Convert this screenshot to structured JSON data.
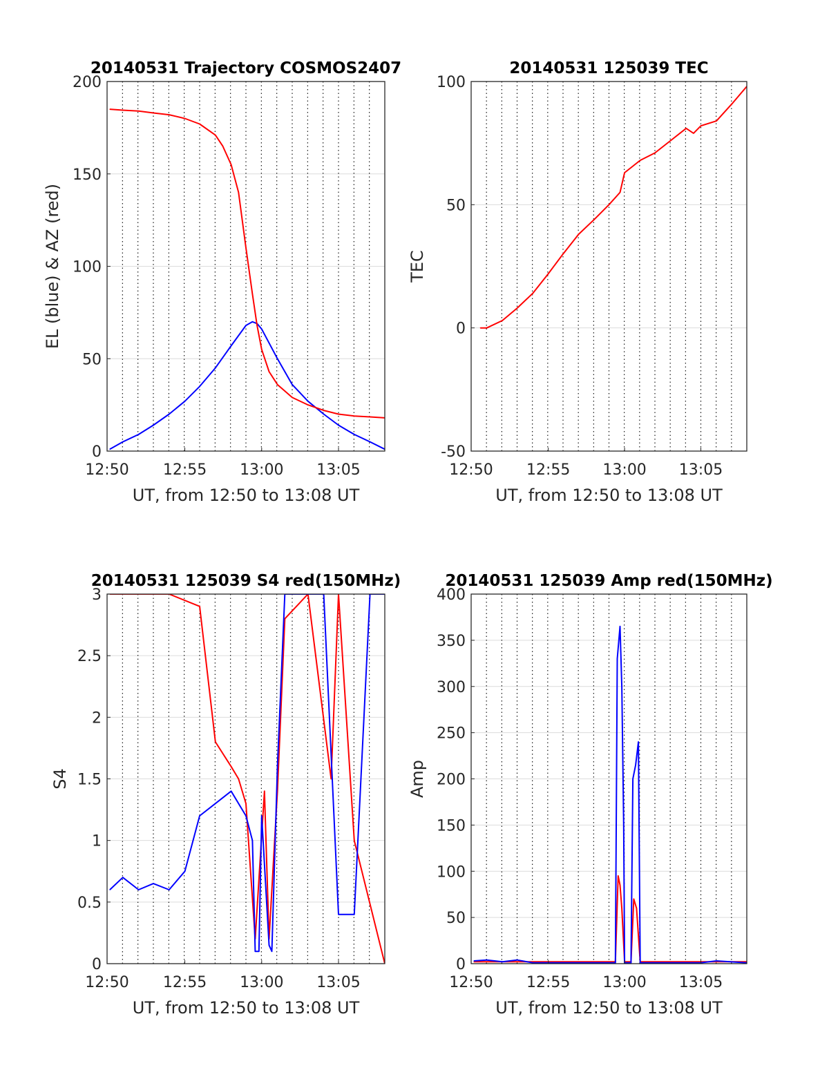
{
  "chart_data": [
    {
      "type": "line",
      "title": "20140531 Trajectory COSMOS2407",
      "xlabel": "UT, from 12:50 to 13:08 UT",
      "ylabel": "EL (blue) & AZ (red)",
      "xlim": [
        12.833,
        13.133
      ],
      "ylim": [
        0,
        200
      ],
      "xticks": [
        12.833,
        12.917,
        13.0,
        13.083
      ],
      "xticklabels": [
        "12:50",
        "12:55",
        "13:00",
        "13:05"
      ],
      "yticks": [
        0,
        50,
        100,
        150,
        200
      ],
      "yticklabels": [
        "0",
        "50",
        "100",
        "150",
        "200"
      ],
      "grid": "horizontal solid, vertical dotted every 1 min",
      "series": [
        {
          "name": "EL (blue)",
          "color": "#0000ff",
          "x": [
            12.836,
            12.85,
            12.867,
            12.883,
            12.9,
            12.917,
            12.933,
            12.95,
            12.967,
            12.983,
            12.99,
            12.995,
            13.0,
            13.017,
            13.033,
            13.05,
            13.067,
            13.083,
            13.1,
            13.117,
            13.133
          ],
          "values": [
            1,
            5,
            9,
            14,
            20,
            27,
            35,
            45,
            57,
            68,
            70,
            69,
            66,
            50,
            36,
            27,
            20,
            14,
            9,
            5,
            1
          ]
        },
        {
          "name": "AZ (red)",
          "color": "#ff0000",
          "x": [
            12.836,
            12.85,
            12.867,
            12.883,
            12.9,
            12.917,
            12.933,
            12.95,
            12.958,
            12.967,
            12.975,
            12.983,
            12.99,
            12.995,
            13.0,
            13.008,
            13.017,
            13.033,
            13.05,
            13.067,
            13.083,
            13.1,
            13.117,
            13.133
          ],
          "values": [
            185,
            184.5,
            184,
            183,
            182,
            180,
            177,
            171,
            165,
            155,
            140,
            110,
            85,
            68,
            55,
            43,
            36,
            29,
            25,
            22,
            20,
            19,
            18.5,
            18
          ]
        }
      ]
    },
    {
      "type": "line",
      "title": "20140531 125039 TEC",
      "xlabel": "UT, from 12:50 to 13:08 UT",
      "ylabel": "TEC",
      "xlim": [
        12.833,
        13.133
      ],
      "ylim": [
        -50,
        100
      ],
      "xticks": [
        12.833,
        12.917,
        13.0,
        13.083
      ],
      "xticklabels": [
        "12:50",
        "12:55",
        "13:00",
        "13:05"
      ],
      "yticks": [
        -50,
        0,
        50,
        100
      ],
      "yticklabels": [
        "-50",
        "0",
        "50",
        "100"
      ],
      "grid": "horizontal solid, vertical dotted every 1 min",
      "series": [
        {
          "color": "#ff0000",
          "x": [
            12.843,
            12.85,
            12.867,
            12.883,
            12.9,
            12.917,
            12.933,
            12.95,
            12.967,
            12.983,
            12.995,
            13.0,
            13.017,
            13.033,
            13.05,
            13.067,
            13.075,
            13.083,
            13.1,
            13.117,
            13.133
          ],
          "values": [
            0,
            0,
            3,
            8,
            14,
            22,
            30,
            38,
            44,
            50,
            55,
            63,
            68,
            71,
            76,
            81,
            79,
            82,
            84,
            91,
            98
          ]
        }
      ]
    },
    {
      "type": "line",
      "title": "20140531 125039 S4 red(150MHz)",
      "xlabel": "UT, from 12:50 to 13:08 UT",
      "ylabel": "S4",
      "xlim": [
        12.833,
        13.133
      ],
      "ylim": [
        0,
        3
      ],
      "xticks": [
        12.833,
        12.917,
        13.0,
        13.083
      ],
      "xticklabels": [
        "12:50",
        "12:55",
        "13:00",
        "13:05"
      ],
      "yticks": [
        0,
        0.5,
        1,
        1.5,
        2,
        2.5,
        3
      ],
      "yticklabels": [
        "0",
        "0.5",
        "1",
        "1.5",
        "2",
        "2.5",
        "3"
      ],
      "grid": "horizontal solid, vertical dotted every 1 min",
      "series": [
        {
          "color": "#ff0000",
          "x": [
            12.836,
            12.9,
            12.933,
            12.95,
            12.967,
            12.975,
            12.983,
            12.993,
            13.003,
            13.008,
            13.017,
            13.025,
            13.05,
            13.075,
            13.083,
            13.1,
            13.133
          ],
          "values": [
            3,
            3,
            2.9,
            1.8,
            1.6,
            1.5,
            1.3,
            0.2,
            1.4,
            0.2,
            1.4,
            2.8,
            3,
            1.5,
            3,
            1.0,
            0
          ]
        },
        {
          "color": "#0000ff",
          "x": [
            12.836,
            12.85,
            12.867,
            12.883,
            12.9,
            12.917,
            12.933,
            12.95,
            12.967,
            12.983,
            12.99,
            12.993,
            12.997,
            13.0,
            13.008,
            13.011,
            13.017,
            13.025,
            13.033,
            13.05,
            13.067,
            13.083,
            13.1,
            13.117,
            13.133
          ],
          "values": [
            0.6,
            0.7,
            0.6,
            0.65,
            0.6,
            0.75,
            1.2,
            1.3,
            1.4,
            1.2,
            1.0,
            0.1,
            0.1,
            1.2,
            0.15,
            0.1,
            1.6,
            3,
            3,
            3,
            3,
            0.4,
            0.4,
            3,
            3
          ]
        }
      ]
    },
    {
      "type": "line",
      "title": "20140531 125039 Amp red(150MHz)",
      "xlabel": "UT, from 12:50 to 13:08 UT",
      "ylabel": "Amp",
      "xlim": [
        12.833,
        13.133
      ],
      "ylim": [
        0,
        400
      ],
      "xticks": [
        12.833,
        12.917,
        13.0,
        13.083
      ],
      "xticklabels": [
        "12:50",
        "12:55",
        "13:00",
        "13:05"
      ],
      "yticks": [
        0,
        50,
        100,
        150,
        200,
        250,
        300,
        350,
        400
      ],
      "yticklabels": [
        "0",
        "50",
        "100",
        "150",
        "200",
        "250",
        "300",
        "350",
        "400"
      ],
      "grid": "horizontal solid, vertical dotted every 1 min",
      "series": [
        {
          "color": "#ff0000",
          "x": [
            12.836,
            12.99,
            12.993,
            12.995,
            12.997,
            13.0,
            13.007,
            13.01,
            13.013,
            13.017,
            13.133
          ],
          "values": [
            2,
            2,
            95,
            85,
            60,
            2,
            2,
            70,
            60,
            2,
            2
          ]
        },
        {
          "color": "#0000ff",
          "x": [
            12.836,
            12.85,
            12.867,
            12.883,
            12.9,
            12.99,
            12.992,
            12.995,
            12.997,
            12.999,
            13.0,
            13.007,
            13.009,
            13.012,
            13.015,
            13.017,
            13.083,
            13.1,
            13.133
          ],
          "values": [
            3,
            4,
            2,
            4,
            1,
            1,
            330,
            365,
            300,
            150,
            1,
            1,
            200,
            215,
            240,
            1,
            1,
            3,
            1
          ]
        }
      ]
    }
  ]
}
